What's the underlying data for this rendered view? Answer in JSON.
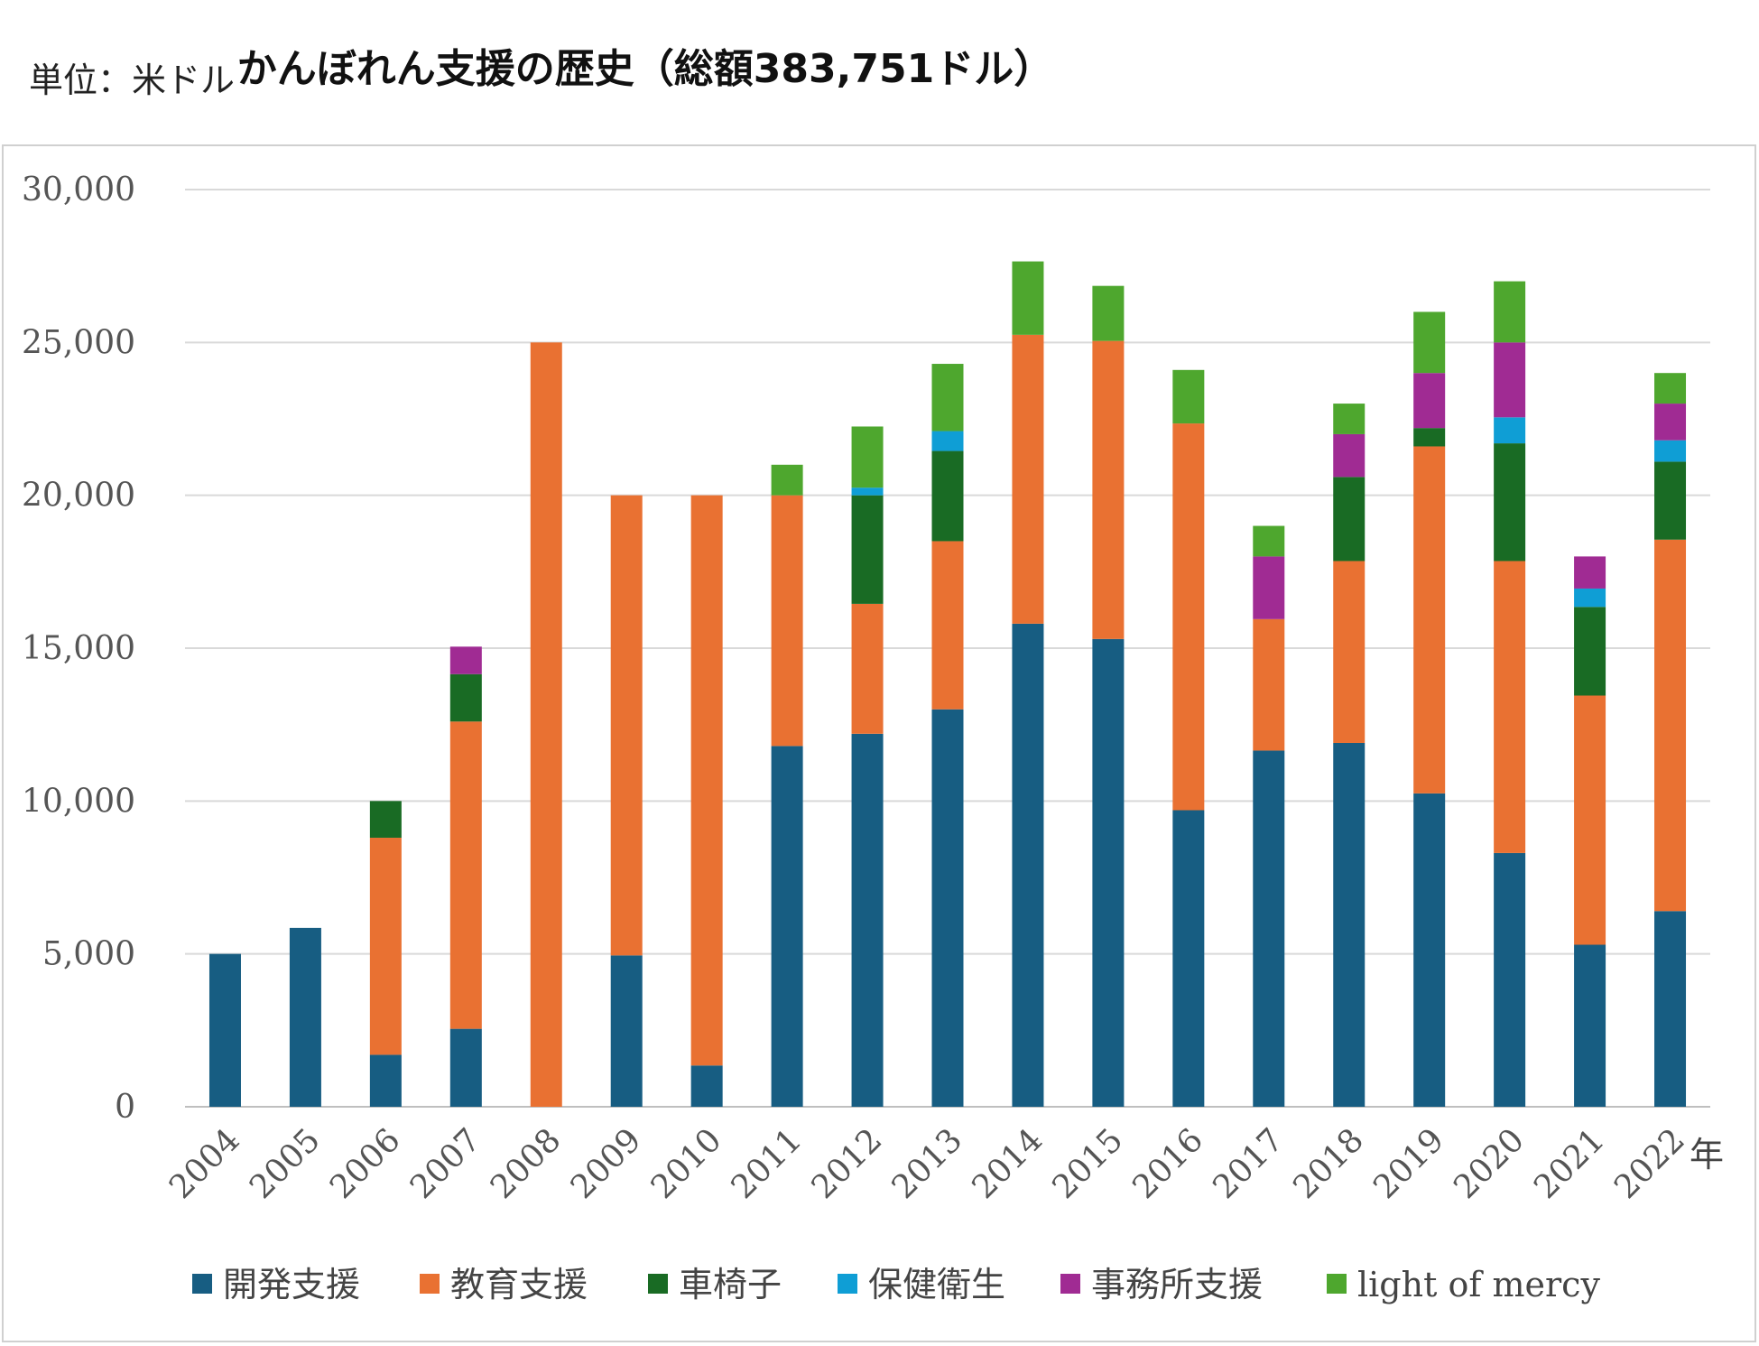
{
  "unit_label": "単位：米ドル",
  "title": "かんぼれん支援の歴史（総額383,751ドル）",
  "chart_data": {
    "type": "bar",
    "stacked": true,
    "title": "かんぼれん支援の歴史（総額383,751ドル）",
    "xlabel": "年",
    "ylabel": "",
    "ylim": [
      0,
      30000
    ],
    "yticks": [
      0,
      5000,
      10000,
      15000,
      20000,
      25000,
      30000
    ],
    "ytick_labels": [
      "0",
      "5,000",
      "10,000",
      "15,000",
      "20,000",
      "25,000",
      "30,000"
    ],
    "grid": true,
    "legend_position": "bottom",
    "categories": [
      "2004",
      "2005",
      "2006",
      "2007",
      "2008",
      "2009",
      "2010",
      "2011",
      "2012",
      "2013",
      "2014",
      "2015",
      "2016",
      "2017",
      "2018",
      "2019",
      "2020",
      "2021",
      "2022"
    ],
    "series": [
      {
        "name": "開発支援",
        "color": "#175d82",
        "values": [
          5000,
          5850,
          1700,
          2550,
          0,
          4950,
          1350,
          11800,
          12200,
          13000,
          15800,
          15300,
          9700,
          11650,
          11900,
          10250,
          8300,
          5300,
          6400
        ]
      },
      {
        "name": "教育支援",
        "color": "#e97132",
        "values": [
          0,
          0,
          7100,
          10050,
          25000,
          15050,
          18650,
          8200,
          4250,
          5500,
          9450,
          9750,
          12650,
          4300,
          5950,
          11350,
          9550,
          8150,
          12150
        ]
      },
      {
        "name": "車椅子",
        "color": "#196b24",
        "values": [
          0,
          0,
          1200,
          1550,
          0,
          0,
          0,
          0,
          3550,
          2950,
          0,
          0,
          0,
          0,
          2750,
          600,
          3850,
          2900,
          2550
        ]
      },
      {
        "name": "保健衛生",
        "color": "#0f9ed5",
        "values": [
          0,
          0,
          0,
          0,
          0,
          0,
          0,
          0,
          250,
          650,
          0,
          0,
          0,
          0,
          0,
          0,
          850,
          600,
          700
        ]
      },
      {
        "name": "事務所支援",
        "color": "#a02b93",
        "values": [
          0,
          0,
          0,
          900,
          0,
          0,
          0,
          0,
          0,
          0,
          0,
          0,
          0,
          2050,
          1400,
          1800,
          2450,
          1050,
          1200
        ]
      },
      {
        "name": "light of mercy",
        "color": "#4ea72e",
        "values": [
          0,
          0,
          0,
          0,
          0,
          0,
          0,
          1000,
          2000,
          2200,
          2400,
          1800,
          1750,
          1000,
          1000,
          2000,
          2000,
          0,
          1000
        ]
      }
    ]
  }
}
